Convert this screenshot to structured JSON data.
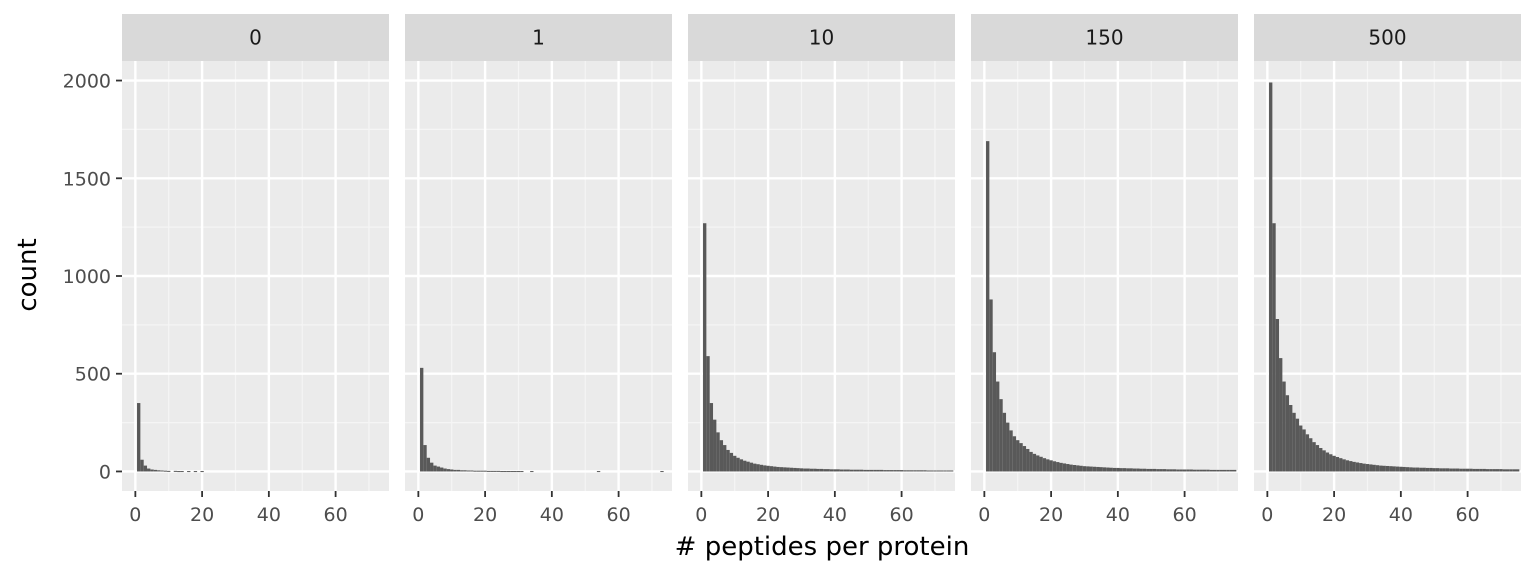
{
  "chart_data": {
    "type": "bar",
    "xlabel": "# peptides per protein",
    "ylabel": "count",
    "xlim": [
      -4,
      76
    ],
    "ylim": [
      -100,
      2100
    ],
    "x_ticks": [
      0,
      20,
      40,
      60
    ],
    "y_ticks": [
      0,
      500,
      1000,
      1500,
      2000
    ],
    "x_tick_labels": [
      "0",
      "20",
      "40",
      "60"
    ],
    "y_tick_labels": [
      "0",
      "500",
      "1000",
      "1500",
      "2000"
    ],
    "bin_width": 1,
    "bin_start": 1,
    "grid": true,
    "colors": {
      "bar": "#595959",
      "panel": "#ebebeb",
      "grid_major": "#ffffff",
      "grid_minor": "#f5f5f5",
      "strip": "#d9d9d9"
    },
    "panels": [
      {
        "label": "0",
        "values": [
          350,
          60,
          30,
          15,
          10,
          8,
          6,
          5,
          4,
          3,
          0,
          3,
          2,
          2,
          0,
          2,
          0,
          2,
          0,
          2
        ]
      },
      {
        "label": "1",
        "values": [
          530,
          135,
          70,
          45,
          30,
          25,
          20,
          15,
          12,
          10,
          8,
          8,
          6,
          6,
          5,
          5,
          4,
          4,
          4,
          4,
          3,
          3,
          3,
          3,
          2,
          2,
          2,
          2,
          2,
          2,
          2,
          0,
          0,
          2,
          0,
          0,
          0,
          0,
          0,
          0,
          0,
          0,
          0,
          0,
          0,
          0,
          0,
          0,
          0,
          0,
          0,
          0,
          0,
          2,
          0,
          0,
          0,
          0,
          0,
          0,
          0,
          0,
          0,
          0,
          0,
          0,
          0,
          0,
          0,
          0,
          0,
          0,
          2
        ]
      },
      {
        "label": "10",
        "values": [
          1270,
          590,
          350,
          265,
          200,
          160,
          135,
          110,
          95,
          80,
          70,
          62,
          55,
          50,
          45,
          40,
          37,
          34,
          31,
          29,
          27,
          25,
          23,
          22,
          21,
          20,
          19,
          18,
          17,
          16,
          15,
          15,
          14,
          14,
          13,
          13,
          12,
          12,
          11,
          11,
          11,
          10,
          10,
          10,
          9,
          9,
          9,
          9,
          8,
          8,
          8,
          8,
          8,
          8,
          7,
          7,
          7,
          7,
          7,
          7,
          6,
          6,
          6,
          6,
          6,
          6,
          6,
          5,
          5,
          5,
          5,
          5,
          5,
          5,
          5
        ]
      },
      {
        "label": "150",
        "values": [
          1690,
          880,
          610,
          460,
          370,
          300,
          250,
          210,
          180,
          160,
          145,
          130,
          115,
          100,
          90,
          82,
          75,
          68,
          62,
          57,
          52,
          48,
          44,
          41,
          38,
          35,
          33,
          31,
          29,
          27,
          26,
          25,
          24,
          23,
          22,
          21,
          20,
          19,
          18,
          18,
          17,
          17,
          16,
          16,
          15,
          15,
          14,
          14,
          13,
          13,
          13,
          12,
          12,
          12,
          11,
          11,
          11,
          10,
          10,
          10,
          10,
          10,
          9,
          9,
          9,
          9,
          9,
          8,
          8,
          8,
          8,
          8,
          8,
          8,
          8
        ]
      },
      {
        "label": "500",
        "values": [
          1990,
          1270,
          780,
          580,
          460,
          390,
          340,
          300,
          270,
          235,
          215,
          190,
          170,
          150,
          135,
          120,
          108,
          97,
          88,
          80,
          74,
          68,
          62,
          57,
          53,
          49,
          46,
          43,
          40,
          38,
          36,
          34,
          32,
          30,
          29,
          28,
          27,
          26,
          25,
          24,
          23,
          22,
          21,
          20,
          20,
          19,
          19,
          18,
          18,
          17,
          17,
          16,
          16,
          16,
          15,
          15,
          15,
          14,
          14,
          14,
          14,
          13,
          13,
          13,
          13,
          12,
          12,
          12,
          12,
          12,
          11,
          11,
          11,
          11,
          11
        ]
      }
    ]
  }
}
